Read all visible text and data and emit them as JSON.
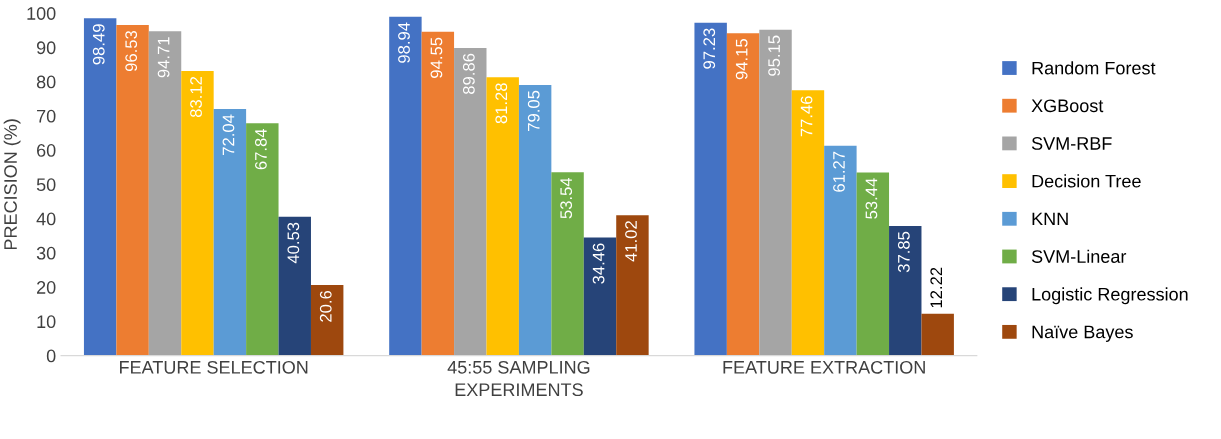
{
  "chart_data": {
    "type": "bar",
    "xlabel": "EXPERIMENTS",
    "ylabel": "PRECISION (%)",
    "categories": [
      "FEATURE SELECTION",
      "45:55 SAMPLING",
      "FEATURE EXTRACTION"
    ],
    "ylim": [
      0,
      100
    ],
    "yticks": [
      0,
      10,
      20,
      30,
      40,
      50,
      60,
      70,
      80,
      90,
      100
    ],
    "grid": false,
    "legend": "right",
    "data_labels": true,
    "series": [
      {
        "name": "Random Forest",
        "color": "#4472c4",
        "values": [
          98.49,
          98.94,
          97.23
        ]
      },
      {
        "name": "XGBoost",
        "color": "#ed7d31",
        "values": [
          96.53,
          94.55,
          94.15
        ]
      },
      {
        "name": "SVM-RBF",
        "color": "#a5a5a5",
        "values": [
          94.71,
          89.86,
          95.15
        ]
      },
      {
        "name": "Decision Tree",
        "color": "#ffc000",
        "values": [
          83.12,
          81.28,
          77.46
        ]
      },
      {
        "name": "KNN",
        "color": "#5b9bd5",
        "values": [
          72.04,
          79.05,
          61.27
        ]
      },
      {
        "name": "SVM-Linear",
        "color": "#70ad47",
        "values": [
          67.84,
          53.54,
          53.44
        ]
      },
      {
        "name": "Logistic Regression",
        "color": "#264478",
        "values": [
          40.53,
          34.46,
          37.85
        ]
      },
      {
        "name": "Naïve Bayes",
        "color": "#9e480e",
        "values": [
          20.6,
          41.02,
          12.22
        ]
      }
    ]
  }
}
